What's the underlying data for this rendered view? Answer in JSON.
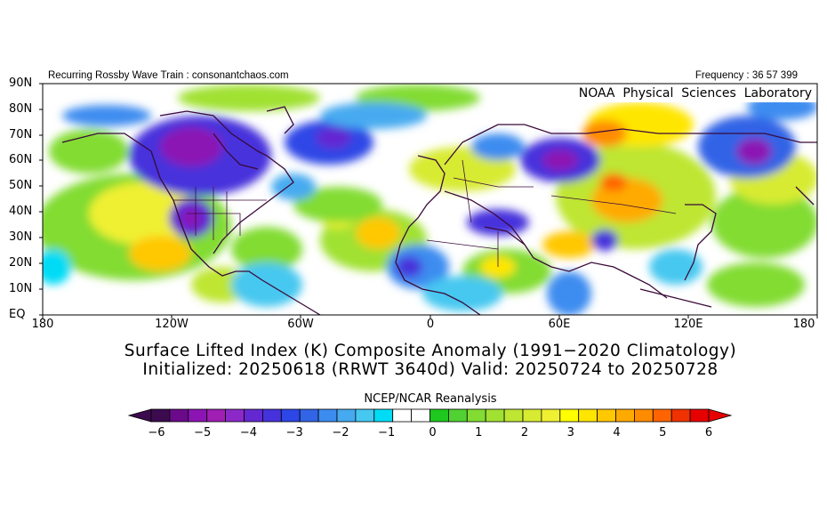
{
  "header": {
    "left_text": "Recurring Rossby Wave Train : consonantchaos.com",
    "right_text": "Frequency : 36 57 399",
    "lab_name": "NOAA  Physical  Sciences  Laboratory"
  },
  "axes": {
    "lat_labels": [
      "90N",
      "80N",
      "70N",
      "60N",
      "50N",
      "40N",
      "30N",
      "20N",
      "10N",
      "EQ"
    ],
    "lon_labels": [
      "180",
      "120W",
      "60W",
      "0",
      "60E",
      "120E",
      "180"
    ]
  },
  "titles": {
    "line1": "Surface Lifted Index (K) Composite Anomaly (1991−2020 Climatology)",
    "line2": "Initialized: 20250618 (RRWT 3640d) Valid: 20250724 to 20250728",
    "source": "NCEP/NCAR Reanalysis"
  },
  "colorbar": {
    "tick_labels": [
      "−6",
      "−5",
      "−4",
      "−3",
      "−2",
      "−1",
      "0",
      "1",
      "2",
      "3",
      "4",
      "5",
      "6"
    ],
    "colors": [
      "#3c0a4e",
      "#6a0a8a",
      "#8c14b4",
      "#a01eb4",
      "#8c28c8",
      "#6428d2",
      "#4632dc",
      "#2d46e6",
      "#3264e6",
      "#3c8cf0",
      "#46aaf0",
      "#46c8f0",
      "#00dcf5",
      "#ffffff",
      "#ffffff",
      "#1ec81e",
      "#50d232",
      "#82dc32",
      "#a0e132",
      "#bee632",
      "#d7eb32",
      "#f0f032",
      "#ffff00",
      "#ffe600",
      "#ffc800",
      "#ffaa00",
      "#ff8c00",
      "#ff6400",
      "#f03200",
      "#e60000"
    ],
    "left_arrow_color": "#3c0a4e",
    "right_arrow_color": "#e60000"
  }
}
